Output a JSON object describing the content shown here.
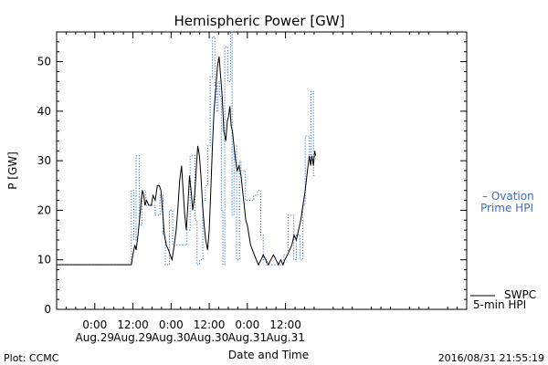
{
  "chart_data": {
    "type": "line",
    "title": "Hemispheric Power [GW]",
    "ylabel": "P [GW]",
    "xlabel": "Date and Time",
    "ylim": [
      0,
      56
    ],
    "xlim_hours": [
      -12,
      117
    ],
    "yticks": [
      0,
      10,
      20,
      30,
      40,
      50
    ],
    "xticks": [
      {
        "hour": 0,
        "line1": "0:00",
        "line2": "Aug.29"
      },
      {
        "hour": 12,
        "line1": "12:00",
        "line2": "Aug.29"
      },
      {
        "hour": 24,
        "line1": "0:00",
        "line2": "Aug.30"
      },
      {
        "hour": 36,
        "line1": "12:00",
        "line2": "Aug.30"
      },
      {
        "hour": 48,
        "line1": "0:00",
        "line2": "Aug.31"
      },
      {
        "hour": 60,
        "line1": "12:00",
        "line2": "Aug.31"
      }
    ],
    "series": [
      {
        "name": "Ovation Prime HPI",
        "color": "#3a6fc4",
        "style": "dotted-step",
        "points": [
          [
            -12,
            9
          ],
          [
            11.5,
            9
          ],
          [
            11.5,
            24
          ],
          [
            12.3,
            24
          ],
          [
            12.3,
            14
          ],
          [
            13.0,
            14
          ],
          [
            13.0,
            31
          ],
          [
            14.0,
            31
          ],
          [
            14.0,
            17
          ],
          [
            14.8,
            17
          ],
          [
            14.8,
            24
          ],
          [
            16.0,
            24
          ],
          [
            16.0,
            21
          ],
          [
            19.0,
            21
          ],
          [
            19.0,
            19
          ],
          [
            20.5,
            19
          ],
          [
            20.5,
            23
          ],
          [
            21.5,
            23
          ],
          [
            21.5,
            15
          ],
          [
            22.2,
            15
          ],
          [
            22.2,
            9
          ],
          [
            23.5,
            9
          ],
          [
            23.5,
            20
          ],
          [
            24.5,
            20
          ],
          [
            24.5,
            13
          ],
          [
            26.0,
            13
          ],
          [
            26.0,
            13
          ],
          [
            29.0,
            13
          ],
          [
            29.0,
            16
          ],
          [
            30.0,
            16
          ],
          [
            30.0,
            31
          ],
          [
            31.5,
            31
          ],
          [
            31.5,
            18
          ],
          [
            32.2,
            18
          ],
          [
            32.2,
            9
          ],
          [
            33.0,
            9
          ],
          [
            33.0,
            10
          ],
          [
            34.0,
            10
          ],
          [
            34.0,
            22
          ],
          [
            34.8,
            22
          ],
          [
            34.8,
            25
          ],
          [
            35.5,
            25
          ],
          [
            35.5,
            33
          ],
          [
            36.3,
            33
          ],
          [
            36.3,
            47
          ],
          [
            37.0,
            47
          ],
          [
            37.0,
            55
          ],
          [
            37.8,
            55
          ],
          [
            37.8,
            45
          ],
          [
            38.3,
            45
          ],
          [
            38.3,
            40
          ],
          [
            38.8,
            40
          ],
          [
            38.8,
            46
          ],
          [
            39.3,
            46
          ],
          [
            39.3,
            43
          ],
          [
            39.8,
            43
          ],
          [
            39.8,
            20
          ],
          [
            40.3,
            20
          ],
          [
            40.3,
            9
          ],
          [
            40.9,
            9
          ],
          [
            40.9,
            53
          ],
          [
            41.8,
            53
          ],
          [
            41.8,
            46
          ],
          [
            42.7,
            46
          ],
          [
            42.7,
            56
          ],
          [
            43.2,
            56
          ],
          [
            43.2,
            19
          ],
          [
            43.8,
            19
          ],
          [
            43.8,
            33
          ],
          [
            44.6,
            33
          ],
          [
            44.6,
            10
          ],
          [
            45.5,
            10
          ],
          [
            45.5,
            30
          ],
          [
            46.0,
            30
          ],
          [
            46.0,
            28
          ],
          [
            47.4,
            28
          ],
          [
            47.4,
            22
          ],
          [
            50.0,
            22
          ],
          [
            50.0,
            23
          ],
          [
            51.2,
            23
          ],
          [
            51.2,
            24
          ],
          [
            52.2,
            24
          ],
          [
            52.2,
            15
          ],
          [
            53.0,
            15
          ],
          [
            53.0,
            10
          ],
          [
            54.0,
            10
          ],
          [
            54.0,
            9
          ],
          [
            59.5,
            9
          ],
          [
            59.5,
            11
          ],
          [
            60.8,
            11
          ],
          [
            60.8,
            19
          ],
          [
            62.6,
            19
          ],
          [
            62.6,
            10
          ],
          [
            63.4,
            10
          ],
          [
            63.4,
            15
          ],
          [
            64.6,
            15
          ],
          [
            64.6,
            10
          ],
          [
            65.4,
            10
          ],
          [
            65.4,
            21
          ],
          [
            66.2,
            21
          ],
          [
            66.2,
            35
          ],
          [
            67.5,
            35
          ],
          [
            67.5,
            30
          ],
          [
            68.0,
            30
          ],
          [
            68.0,
            44
          ],
          [
            68.8,
            44
          ],
          [
            68.8,
            27
          ],
          [
            69.5,
            27
          ]
        ]
      },
      {
        "name": "SWPC 5-min HPI",
        "color": "#000000",
        "style": "solid",
        "points": [
          [
            -12,
            9
          ],
          [
            11.5,
            9
          ],
          [
            12.0,
            11
          ],
          [
            12.6,
            13
          ],
          [
            13.0,
            12
          ],
          [
            13.6,
            15
          ],
          [
            14.2,
            19
          ],
          [
            14.6,
            22
          ],
          [
            15.0,
            24
          ],
          [
            15.4,
            23
          ],
          [
            15.8,
            21
          ],
          [
            16.3,
            22
          ],
          [
            17.0,
            21
          ],
          [
            17.8,
            21
          ],
          [
            18.3,
            23
          ],
          [
            19.0,
            22
          ],
          [
            19.7,
            25
          ],
          [
            20.3,
            25
          ],
          [
            20.8,
            24
          ],
          [
            21.3,
            20
          ],
          [
            21.9,
            15
          ],
          [
            22.5,
            13
          ],
          [
            23.2,
            12
          ],
          [
            23.7,
            11
          ],
          [
            24.3,
            10
          ],
          [
            25.0,
            13
          ],
          [
            25.6,
            16
          ],
          [
            26.1,
            20
          ],
          [
            26.7,
            26
          ],
          [
            27.3,
            29
          ],
          [
            27.8,
            24
          ],
          [
            28.3,
            19
          ],
          [
            28.8,
            16
          ],
          [
            29.3,
            21
          ],
          [
            29.8,
            27
          ],
          [
            30.3,
            24
          ],
          [
            30.8,
            20
          ],
          [
            31.4,
            23
          ],
          [
            31.9,
            28
          ],
          [
            32.4,
            33
          ],
          [
            32.9,
            31
          ],
          [
            33.4,
            27
          ],
          [
            33.9,
            21
          ],
          [
            34.4,
            17
          ],
          [
            34.9,
            14
          ],
          [
            35.5,
            12
          ],
          [
            36.0,
            16
          ],
          [
            36.5,
            24
          ],
          [
            37.0,
            33
          ],
          [
            37.5,
            40
          ],
          [
            38.1,
            45
          ],
          [
            38.6,
            49
          ],
          [
            39.1,
            51
          ],
          [
            39.6,
            47
          ],
          [
            40.1,
            43
          ],
          [
            40.6,
            36
          ],
          [
            41.2,
            34
          ],
          [
            41.7,
            38
          ],
          [
            42.1,
            39
          ],
          [
            42.5,
            41
          ],
          [
            42.9,
            37
          ],
          [
            43.3,
            36
          ],
          [
            43.8,
            33
          ],
          [
            44.3,
            30
          ],
          [
            44.8,
            28
          ],
          [
            45.4,
            29
          ],
          [
            46.0,
            27
          ],
          [
            46.5,
            24
          ],
          [
            47.0,
            21
          ],
          [
            47.5,
            18
          ],
          [
            48.0,
            17
          ],
          [
            48.5,
            15
          ],
          [
            49.0,
            13
          ],
          [
            49.6,
            12
          ],
          [
            50.2,
            11
          ],
          [
            50.8,
            10
          ],
          [
            51.5,
            9
          ],
          [
            52.3,
            10
          ],
          [
            53.0,
            11
          ],
          [
            53.8,
            10
          ],
          [
            54.6,
            9
          ],
          [
            55.4,
            10
          ],
          [
            56.2,
            11
          ],
          [
            57.0,
            10
          ],
          [
            57.8,
            9
          ],
          [
            58.5,
            10
          ],
          [
            59.2,
            9
          ],
          [
            59.8,
            10
          ],
          [
            60.6,
            11
          ],
          [
            61.3,
            12
          ],
          [
            62.0,
            13
          ],
          [
            62.7,
            15
          ],
          [
            63.4,
            14
          ],
          [
            64.1,
            16
          ],
          [
            64.8,
            18
          ],
          [
            65.5,
            21
          ],
          [
            66.2,
            24
          ],
          [
            66.9,
            28
          ],
          [
            67.5,
            31
          ],
          [
            67.9,
            29
          ],
          [
            68.3,
            31
          ],
          [
            68.8,
            29
          ],
          [
            69.2,
            32
          ],
          [
            69.5,
            31
          ]
        ]
      }
    ],
    "legend": [
      {
        "line1": "– Ovation",
        "line2": "Prime HPI",
        "color": "#3a6fc4"
      },
      {
        "line1": "SWPC",
        "line2": "5-min HPI",
        "color": "#000000"
      }
    ]
  },
  "footer": {
    "plot_label": "Plot: CCMC",
    "timestamp": "2016/08/31 21:55:19"
  }
}
